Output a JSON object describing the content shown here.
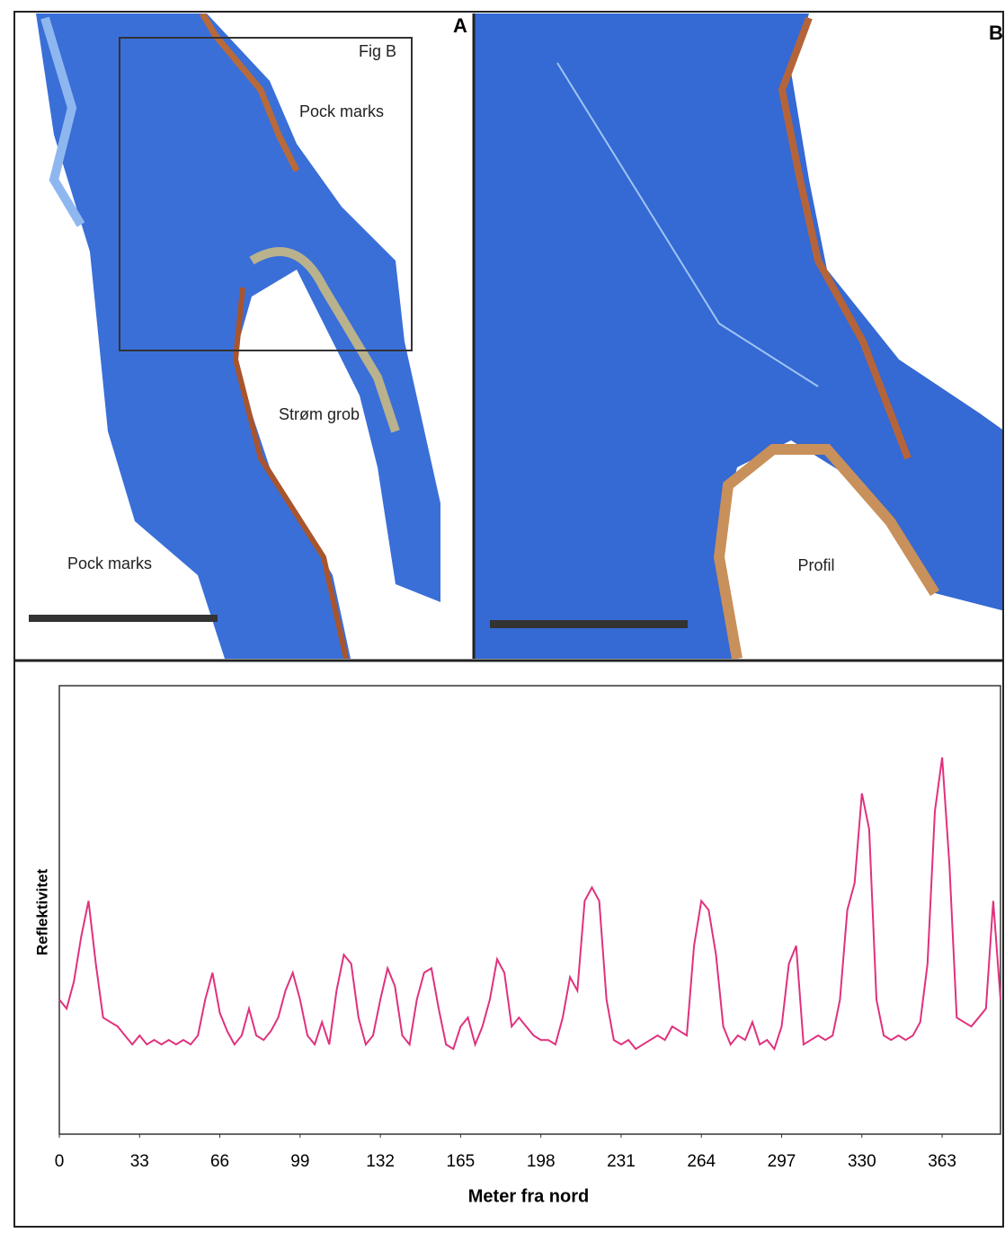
{
  "panels": [
    {
      "letter": "A",
      "labels": [
        "Fig B",
        "Pock marks",
        "Strøm grob",
        "Pock marks"
      ]
    },
    {
      "letter": "B",
      "labels": [
        "Profil"
      ]
    }
  ],
  "chart_data": {
    "type": "line",
    "x_label": "Meter fra nord",
    "y_label": "Reflektivitet",
    "color": "#e0317e",
    "xlim": [
      0,
      387
    ],
    "ylim": [
      0,
      100
    ],
    "xticks": [
      0,
      33,
      66,
      99,
      132,
      165,
      198,
      231,
      264,
      297,
      330,
      363
    ],
    "x": [
      0,
      3,
      6,
      9,
      12,
      15,
      18,
      21,
      24,
      27,
      30,
      33,
      36,
      39,
      42,
      45,
      48,
      51,
      54,
      57,
      60,
      63,
      66,
      69,
      72,
      75,
      78,
      81,
      84,
      87,
      90,
      93,
      96,
      99,
      102,
      105,
      108,
      111,
      114,
      117,
      120,
      123,
      126,
      129,
      132,
      135,
      138,
      141,
      144,
      147,
      150,
      153,
      156,
      159,
      162,
      165,
      168,
      171,
      174,
      177,
      180,
      183,
      186,
      189,
      192,
      195,
      198,
      201,
      204,
      207,
      210,
      213,
      216,
      219,
      222,
      225,
      228,
      231,
      234,
      237,
      240,
      243,
      246,
      249,
      252,
      255,
      258,
      261,
      264,
      267,
      270,
      273,
      276,
      279,
      282,
      285,
      288,
      291,
      294,
      297,
      300,
      303,
      306,
      309,
      312,
      315,
      318,
      321,
      324,
      327,
      330,
      333,
      336,
      339,
      342,
      345,
      348,
      351,
      354,
      357,
      360,
      363,
      366,
      369,
      372,
      375,
      378,
      381,
      384,
      387
    ],
    "values": [
      30,
      28,
      34,
      44,
      52,
      38,
      26,
      25,
      24,
      22,
      20,
      22,
      20,
      21,
      20,
      21,
      20,
      21,
      20,
      22,
      30,
      36,
      27,
      23,
      20,
      22,
      28,
      22,
      21,
      23,
      26,
      32,
      36,
      30,
      22,
      20,
      25,
      20,
      32,
      40,
      38,
      26,
      20,
      22,
      30,
      37,
      33,
      22,
      20,
      30,
      36,
      37,
      28,
      20,
      19,
      24,
      26,
      20,
      24,
      30,
      39,
      36,
      24,
      26,
      24,
      22,
      21,
      21,
      20,
      26,
      35,
      32,
      52,
      55,
      52,
      30,
      21,
      20,
      21,
      19,
      20,
      21,
      22,
      21,
      24,
      23,
      22,
      42,
      52,
      50,
      40,
      24,
      20,
      22,
      21,
      25,
      20,
      21,
      19,
      24,
      38,
      42,
      20,
      21,
      22,
      21,
      22,
      30,
      50,
      56,
      76,
      68,
      30,
      22,
      21,
      22,
      21,
      22,
      25,
      38,
      72,
      84,
      60,
      26,
      25,
      24,
      26,
      28,
      52,
      30
    ]
  }
}
